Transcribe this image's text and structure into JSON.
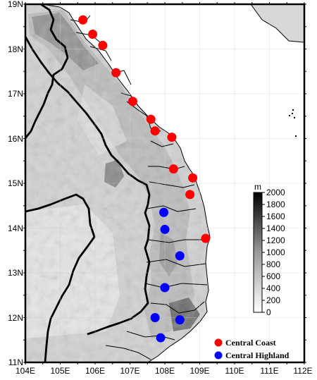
{
  "map": {
    "longitude_labels": [
      "104E",
      "105E",
      "106E",
      "107E",
      "108E",
      "109E",
      "110E",
      "111E",
      "112E"
    ],
    "latitude_labels": [
      "19N",
      "18N",
      "17N",
      "16N",
      "15N",
      "14N",
      "13N",
      "12N",
      "11N"
    ],
    "colorbar": {
      "unit": "m",
      "tick_labels": [
        "2000",
        "1800",
        "1600",
        "1400",
        "1200",
        "1000",
        "800",
        "600",
        "400",
        "200",
        "0"
      ]
    },
    "legend": [
      {
        "label": "Central Coast",
        "color": "#ff0000"
      },
      {
        "label": "Central Highland",
        "color": "#0000ff"
      }
    ],
    "stations": {
      "central_coast": [
        {
          "lon": 105.65,
          "lat": 18.65
        },
        {
          "lon": 105.93,
          "lat": 18.33
        },
        {
          "lon": 106.22,
          "lat": 18.08
        },
        {
          "lon": 106.6,
          "lat": 17.47
        },
        {
          "lon": 107.08,
          "lat": 16.83
        },
        {
          "lon": 107.6,
          "lat": 16.43
        },
        {
          "lon": 107.72,
          "lat": 16.17
        },
        {
          "lon": 108.2,
          "lat": 16.03
        },
        {
          "lon": 108.25,
          "lat": 15.32
        },
        {
          "lon": 108.8,
          "lat": 15.12
        },
        {
          "lon": 108.72,
          "lat": 14.75
        },
        {
          "lon": 109.17,
          "lat": 13.77
        }
      ],
      "central_highland": [
        {
          "lon": 107.97,
          "lat": 14.35
        },
        {
          "lon": 108.0,
          "lat": 13.97
        },
        {
          "lon": 108.43,
          "lat": 13.38
        },
        {
          "lon": 108.0,
          "lat": 12.67
        },
        {
          "lon": 107.72,
          "lat": 12.0
        },
        {
          "lon": 108.43,
          "lat": 11.95
        },
        {
          "lon": 107.88,
          "lat": 11.55
        }
      ]
    }
  }
}
